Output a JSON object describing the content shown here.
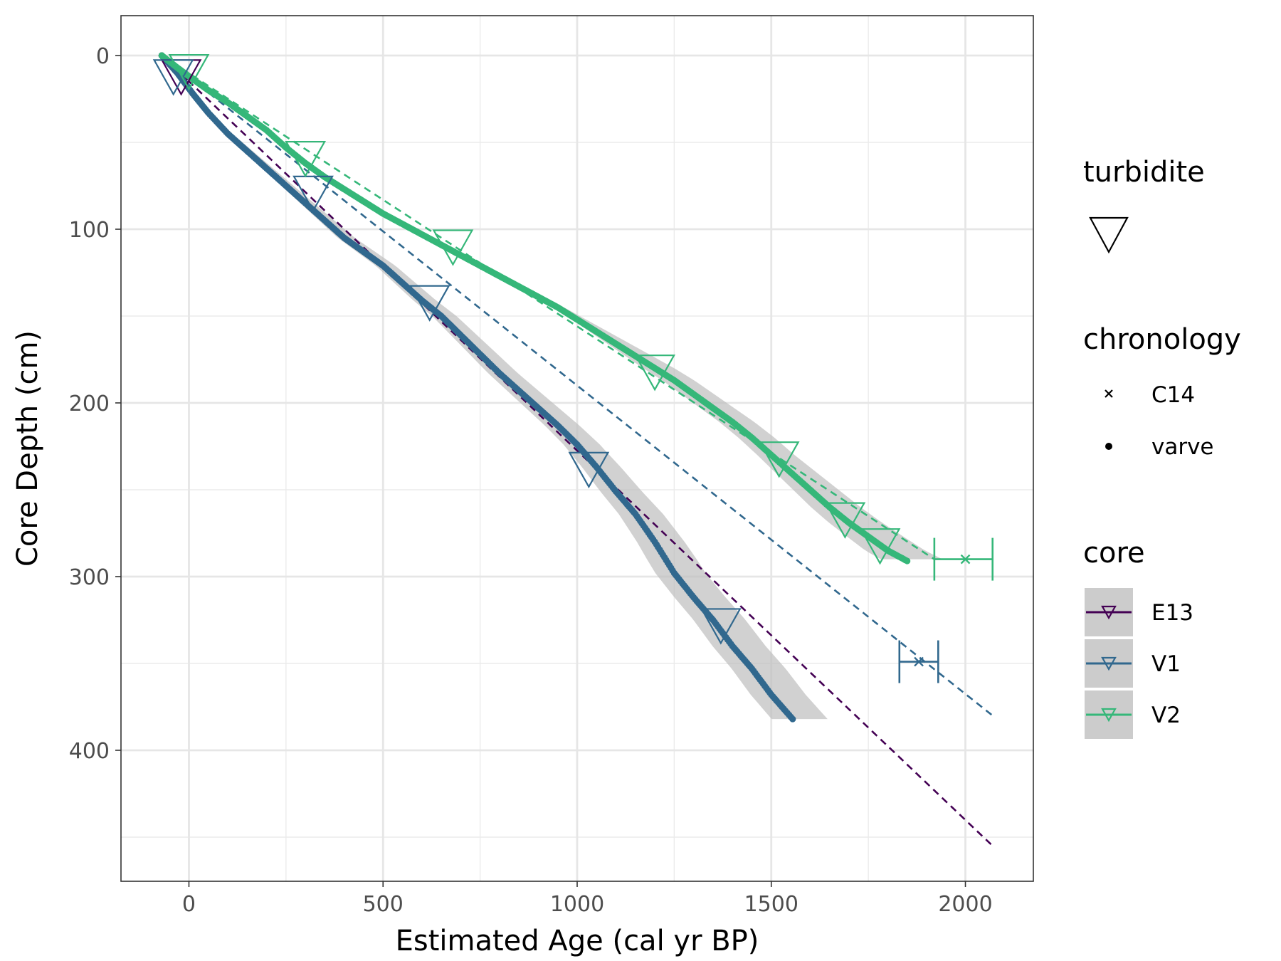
{
  "chart_data": {
    "type": "scatter",
    "xlabel": "Estimated Age (cal yr BP)",
    "ylabel": "Core Depth (cm)",
    "xlim": [
      -175,
      2175
    ],
    "ylim": [
      0,
      470
    ],
    "y_reversed": true,
    "x_ticks": [
      0,
      500,
      1000,
      1500,
      2000
    ],
    "y_ticks": [
      0,
      100,
      200,
      300,
      400
    ],
    "grid": true,
    "legend_position": "right",
    "legend": {
      "turbidite": {
        "title": "turbidite"
      },
      "chronology": {
        "title": "chronology",
        "items": [
          {
            "label": "C14",
            "shape": "cross"
          },
          {
            "label": "varve",
            "shape": "dot"
          }
        ]
      },
      "core": {
        "title": "core",
        "items": [
          {
            "label": "E13",
            "color": "#440154"
          },
          {
            "label": "V1",
            "color": "#31688e"
          },
          {
            "label": "V2",
            "color": "#35b779"
          }
        ]
      }
    },
    "series": [
      {
        "name": "E13",
        "color": "#440154",
        "fit_line": [
          [
            -70,
            0
          ],
          [
            2070,
            455
          ]
        ],
        "varve": [
          [
            -70,
            0
          ],
          [
            -35,
            8
          ],
          [
            -10,
            13
          ]
        ],
        "turbidites": [
          [
            -20,
            10
          ]
        ]
      },
      {
        "name": "V1",
        "color": "#31688e",
        "fit_line": [
          [
            -70,
            0
          ],
          [
            2070,
            380
          ]
        ],
        "varve": [
          [
            -70,
            0
          ],
          [
            -30,
            10
          ],
          [
            10,
            22
          ],
          [
            50,
            33
          ],
          [
            100,
            45
          ],
          [
            150,
            55
          ],
          [
            200,
            65
          ],
          [
            250,
            75
          ],
          [
            300,
            85
          ],
          [
            350,
            95
          ],
          [
            400,
            105
          ],
          [
            450,
            113
          ],
          [
            500,
            121
          ],
          [
            550,
            131
          ],
          [
            600,
            141
          ],
          [
            650,
            150
          ],
          [
            700,
            161
          ],
          [
            750,
            172
          ],
          [
            800,
            183
          ],
          [
            850,
            193
          ],
          [
            900,
            203
          ],
          [
            950,
            213
          ],
          [
            1000,
            224
          ],
          [
            1050,
            237
          ],
          [
            1100,
            251
          ],
          [
            1150,
            264
          ],
          [
            1200,
            280
          ],
          [
            1250,
            298
          ],
          [
            1300,
            312
          ],
          [
            1350,
            325
          ],
          [
            1400,
            340
          ],
          [
            1450,
            353
          ],
          [
            1500,
            368
          ],
          [
            1555,
            382
          ]
        ],
        "band": [
          [
            -70,
            -70,
            0
          ],
          [
            1000,
            1060,
            230
          ],
          [
            1200,
            1280,
            290
          ],
          [
            1510,
            1600,
            382
          ]
        ],
        "turbidites": [
          [
            -40,
            10
          ],
          [
            320,
            77
          ],
          [
            620,
            140
          ],
          [
            1030,
            236
          ],
          [
            1370,
            326
          ]
        ],
        "c14": [
          {
            "x": 1880,
            "y": 349,
            "xmin": 1830,
            "xmax": 1930
          }
        ]
      },
      {
        "name": "V2",
        "color": "#35b779",
        "fit_line": [
          [
            -70,
            0
          ],
          [
            1920,
            290
          ]
        ],
        "varve": [
          [
            -70,
            0
          ],
          [
            -30,
            7
          ],
          [
            0,
            12
          ],
          [
            50,
            20
          ],
          [
            100,
            27
          ],
          [
            150,
            35
          ],
          [
            200,
            43
          ],
          [
            250,
            53
          ],
          [
            300,
            62
          ],
          [
            350,
            70
          ],
          [
            400,
            77
          ],
          [
            450,
            84
          ],
          [
            500,
            91
          ],
          [
            550,
            97
          ],
          [
            600,
            103
          ],
          [
            650,
            109
          ],
          [
            700,
            115
          ],
          [
            750,
            121
          ],
          [
            800,
            127
          ],
          [
            850,
            133
          ],
          [
            900,
            139
          ],
          [
            950,
            145
          ],
          [
            1000,
            152
          ],
          [
            1050,
            159
          ],
          [
            1100,
            166
          ],
          [
            1150,
            173
          ],
          [
            1200,
            180
          ],
          [
            1250,
            187
          ],
          [
            1300,
            195
          ],
          [
            1350,
            203
          ],
          [
            1400,
            211
          ],
          [
            1450,
            220
          ],
          [
            1500,
            230
          ],
          [
            1550,
            240
          ],
          [
            1600,
            250
          ],
          [
            1650,
            260
          ],
          [
            1700,
            269
          ],
          [
            1750,
            277
          ],
          [
            1800,
            285
          ],
          [
            1850,
            291
          ]
        ],
        "band": [
          [
            -70,
            -70,
            0
          ],
          [
            800,
            800,
            128
          ],
          [
            1200,
            1250,
            180
          ],
          [
            1500,
            1560,
            230
          ],
          [
            1800,
            1900,
            291
          ]
        ],
        "turbidites": [
          [
            0,
            7
          ],
          [
            300,
            57
          ],
          [
            680,
            108
          ],
          [
            1200,
            180
          ],
          [
            1520,
            230
          ],
          [
            1690,
            265
          ],
          [
            1780,
            280
          ]
        ],
        "c14": [
          {
            "x": 2000,
            "y": 290,
            "xmin": 1920,
            "xmax": 2070
          }
        ]
      }
    ]
  }
}
